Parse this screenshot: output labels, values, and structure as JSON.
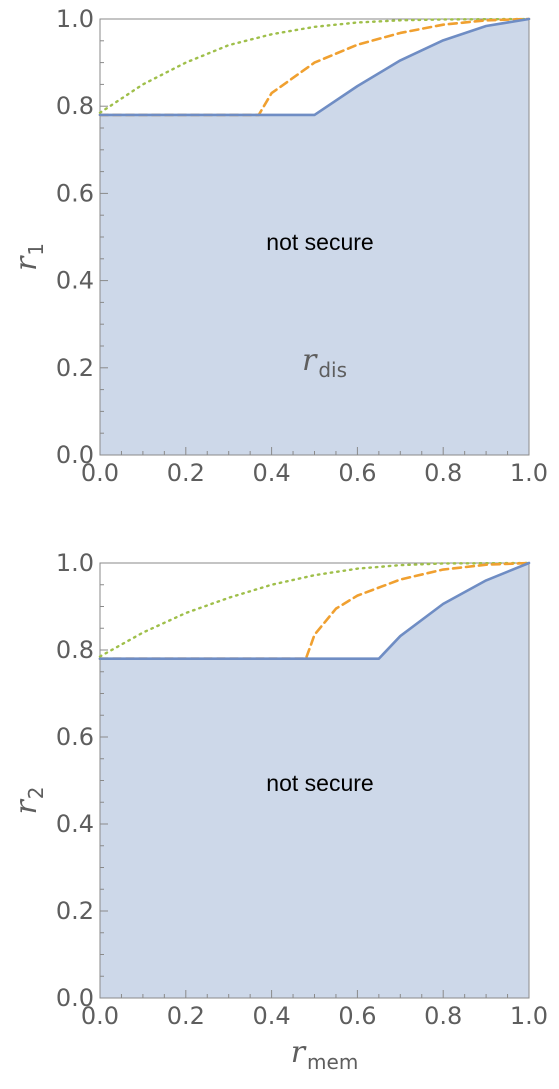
{
  "chart_data": [
    {
      "type": "area",
      "xlabel": "r",
      "xlabel_sub": "dis",
      "ylabel": "r",
      "ylabel_sub": "1",
      "xlim": [
        0,
        1
      ],
      "ylim": [
        0,
        1
      ],
      "xticks": [
        "0.0",
        "0.2",
        "0.4",
        "0.6",
        "0.8",
        "1.0"
      ],
      "yticks": [
        "0.0",
        "0.2",
        "0.4",
        "0.6",
        "0.8",
        "1.0"
      ],
      "annotation": "not secure",
      "colors": {
        "solid": "#6f8dc4",
        "dashed": "#f0a030",
        "dotted": "#9fbf4a",
        "fill": "#cdd8e9"
      },
      "series": [
        {
          "style": "solid",
          "points": [
            [
              0,
              0.78
            ],
            [
              0.5,
              0.78
            ],
            [
              0.6,
              0.846
            ],
            [
              0.7,
              0.905
            ],
            [
              0.8,
              0.951
            ],
            [
              0.9,
              0.984
            ],
            [
              1.0,
              1.0
            ]
          ]
        },
        {
          "style": "dashed",
          "points": [
            [
              0,
              0.78
            ],
            [
              0.37,
              0.78
            ],
            [
              0.4,
              0.83
            ],
            [
              0.5,
              0.9
            ],
            [
              0.6,
              0.941
            ],
            [
              0.7,
              0.968
            ],
            [
              0.8,
              0.987
            ],
            [
              0.9,
              0.997
            ],
            [
              1.0,
              1.0
            ]
          ]
        },
        {
          "style": "dotted",
          "points": [
            [
              0,
              0.785
            ],
            [
              0.1,
              0.85
            ],
            [
              0.2,
              0.9
            ],
            [
              0.3,
              0.94
            ],
            [
              0.4,
              0.965
            ],
            [
              0.5,
              0.982
            ],
            [
              0.6,
              0.992
            ],
            [
              0.7,
              0.997
            ],
            [
              0.8,
              0.999
            ],
            [
              1.0,
              1.0
            ]
          ]
        }
      ]
    },
    {
      "type": "area",
      "xlabel": "r",
      "xlabel_sub": "mem",
      "ylabel": "r",
      "ylabel_sub": "2",
      "xlim": [
        0,
        1
      ],
      "ylim": [
        0,
        1
      ],
      "xticks": [
        "0.0",
        "0.2",
        "0.4",
        "0.6",
        "0.8",
        "1.0"
      ],
      "yticks": [
        "0.0",
        "0.2",
        "0.4",
        "0.6",
        "0.8",
        "1.0"
      ],
      "annotation": "not secure",
      "colors": {
        "solid": "#6f8dc4",
        "dashed": "#f0a030",
        "dotted": "#9fbf4a",
        "fill": "#cdd8e9"
      },
      "series": [
        {
          "style": "solid",
          "points": [
            [
              0,
              0.78
            ],
            [
              0.65,
              0.78
            ],
            [
              0.7,
              0.832
            ],
            [
              0.8,
              0.906
            ],
            [
              0.9,
              0.96
            ],
            [
              1.0,
              1.0
            ]
          ]
        },
        {
          "style": "dashed",
          "points": [
            [
              0,
              0.78
            ],
            [
              0.48,
              0.78
            ],
            [
              0.5,
              0.835
            ],
            [
              0.55,
              0.895
            ],
            [
              0.6,
              0.925
            ],
            [
              0.7,
              0.962
            ],
            [
              0.8,
              0.985
            ],
            [
              0.9,
              0.996
            ],
            [
              1.0,
              1.0
            ]
          ]
        },
        {
          "style": "dotted",
          "points": [
            [
              0,
              0.785
            ],
            [
              0.1,
              0.84
            ],
            [
              0.2,
              0.885
            ],
            [
              0.3,
              0.92
            ],
            [
              0.4,
              0.95
            ],
            [
              0.5,
              0.972
            ],
            [
              0.6,
              0.987
            ],
            [
              0.7,
              0.995
            ],
            [
              0.8,
              0.999
            ],
            [
              1.0,
              1.0
            ]
          ]
        }
      ]
    }
  ]
}
